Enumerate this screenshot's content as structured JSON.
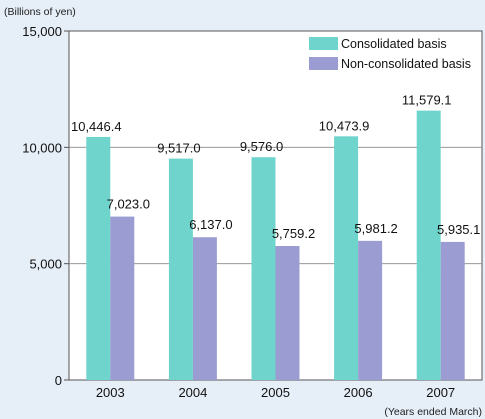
{
  "chart_data": {
    "type": "bar",
    "title": "",
    "ylabel": "(Billions of yen)",
    "xlabel": "",
    "x_footnote": "(Years ended March)",
    "categories": [
      "2003",
      "2004",
      "2005",
      "2006",
      "2007"
    ],
    "ylim": [
      0,
      15000
    ],
    "yticks": [
      0,
      5000,
      10000,
      15000
    ],
    "ytick_labels": [
      "0",
      "5,000",
      "10,000",
      "15,000"
    ],
    "grid": "horizontal",
    "legend_position": "top-right",
    "series": [
      {
        "name": "Consolidated basis",
        "color": "#6fd4cc",
        "values": [
          10446.4,
          9517.0,
          9576.0,
          10473.9,
          11579.1
        ],
        "labels": [
          "10,446.4",
          "9,517.0",
          "9,576.0",
          "10,473.9",
          "11,579.1"
        ]
      },
      {
        "name": "Non-consolidated basis",
        "color": "#9b9dd2",
        "values": [
          7023.0,
          6137.0,
          5759.2,
          5981.2,
          5935.1
        ],
        "labels": [
          "7,023.0",
          "6,137.0",
          "5,759.2",
          "5,981.2",
          "5,935.1"
        ]
      }
    ]
  }
}
